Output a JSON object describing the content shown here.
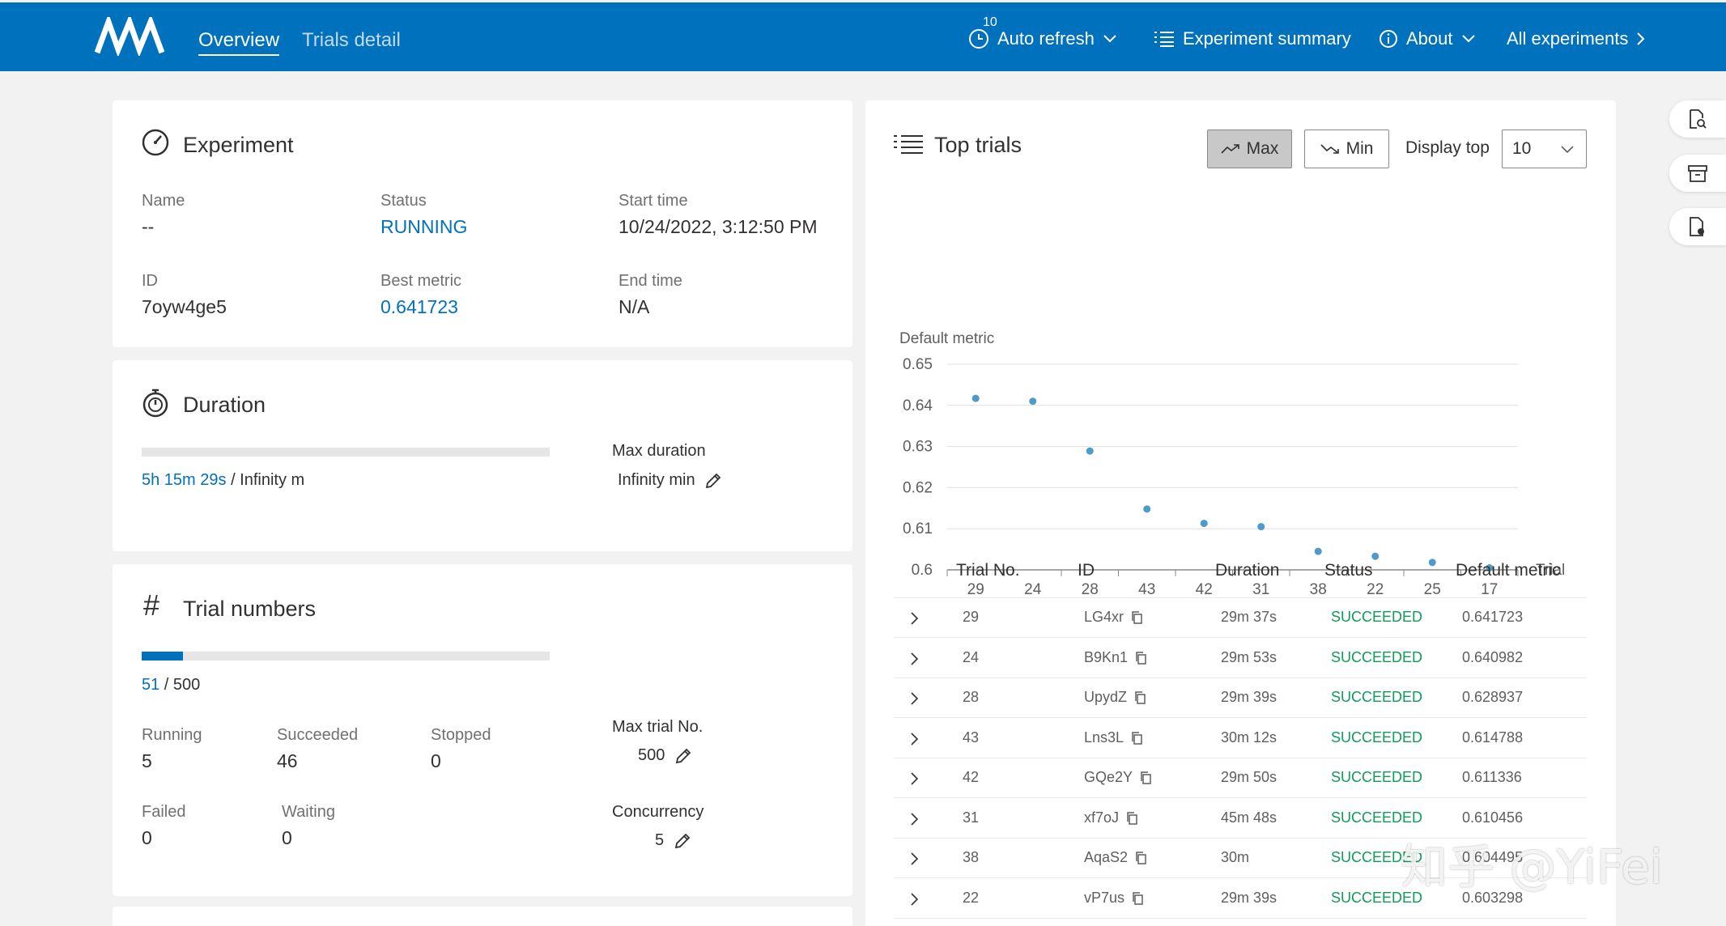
{
  "header": {
    "tabs": [
      "Overview",
      "Trials detail"
    ],
    "refresh_interval": "10",
    "auto_refresh": "Auto refresh",
    "experiment_summary": "Experiment summary",
    "about": "About",
    "all_experiments": "All experiments"
  },
  "experiment": {
    "title": "Experiment",
    "name_label": "Name",
    "name_value": "--",
    "status_label": "Status",
    "status_value": "RUNNING",
    "start_label": "Start time",
    "start_value": "10/24/2022, 3:12:50 PM",
    "id_label": "ID",
    "id_value": "7oyw4ge5",
    "best_label": "Best metric",
    "best_value": "0.641723",
    "end_label": "End time",
    "end_value": "N/A"
  },
  "duration": {
    "title": "Duration",
    "elapsed": "5h 15m 29s",
    "total": " / Infinity m",
    "max_label": "Max duration",
    "max_value": "Infinity min"
  },
  "trial_numbers": {
    "title": "Trial numbers",
    "current": "51",
    "total": " / 500",
    "progress_fraction": 0.102,
    "running_label": "Running",
    "running_value": "5",
    "succeeded_label": "Succeeded",
    "succeeded_value": "46",
    "stopped_label": "Stopped",
    "stopped_value": "0",
    "failed_label": "Failed",
    "failed_value": "0",
    "waiting_label": "Waiting",
    "waiting_value": "0",
    "max_label": "Max trial No.",
    "max_value": "500",
    "concurrency_label": "Concurrency",
    "concurrency_value": "5"
  },
  "top_trials": {
    "title": "Top trials",
    "max_label": "Max",
    "min_label": "Min",
    "display_top_label": "Display top",
    "display_top_value": "10",
    "columns": [
      "Trial No.",
      "ID",
      "Duration",
      "Status",
      "Default metric"
    ],
    "rows": [
      {
        "no": "29",
        "id": "LG4xr",
        "duration": "29m 37s",
        "status": "SUCCEEDED",
        "metric": "0.641723"
      },
      {
        "no": "24",
        "id": "B9Kn1",
        "duration": "29m 53s",
        "status": "SUCCEEDED",
        "metric": "0.640982"
      },
      {
        "no": "28",
        "id": "UpydZ",
        "duration": "29m 39s",
        "status": "SUCCEEDED",
        "metric": "0.628937"
      },
      {
        "no": "43",
        "id": "Lns3L",
        "duration": "30m 12s",
        "status": "SUCCEEDED",
        "metric": "0.614788"
      },
      {
        "no": "42",
        "id": "GQe2Y",
        "duration": "29m 50s",
        "status": "SUCCEEDED",
        "metric": "0.611336"
      },
      {
        "no": "31",
        "id": "xf7oJ",
        "duration": "45m 48s",
        "status": "SUCCEEDED",
        "metric": "0.610456"
      },
      {
        "no": "38",
        "id": "AqaS2",
        "duration": "30m",
        "status": "SUCCEEDED",
        "metric": "0.604495"
      },
      {
        "no": "22",
        "id": "vP7us",
        "duration": "29m 39s",
        "status": "SUCCEEDED",
        "metric": "0.603298"
      }
    ]
  },
  "chart_data": {
    "type": "scatter",
    "ylabel": "Default metric",
    "xlabel": "Trial",
    "categories": [
      "29",
      "24",
      "28",
      "43",
      "42",
      "31",
      "38",
      "22",
      "25",
      "17"
    ],
    "values": [
      0.6417,
      0.641,
      0.6289,
      0.6148,
      0.6113,
      0.6105,
      0.6045,
      0.6033,
      0.6018,
      0.6005
    ],
    "ylim": [
      0.6,
      0.65
    ],
    "yticks": [
      "0.6",
      "0.61",
      "0.62",
      "0.63",
      "0.64",
      "0.65"
    ],
    "color": "#4e9ac9",
    "grid": true
  },
  "watermark": "知乎 @YiFei",
  "colors": {
    "accent": "#0071bc",
    "success": "#0f9b59"
  }
}
